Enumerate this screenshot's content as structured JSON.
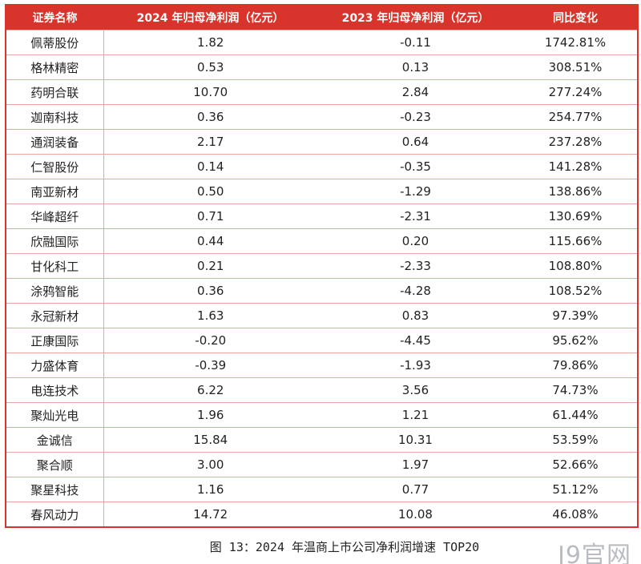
{
  "table": {
    "header": [
      "证券名称",
      "2024 年归母净利润（亿元）",
      "2023 年归母净利润（亿元）",
      "同比变化"
    ],
    "rows": [
      [
        "佩蒂股份",
        "1.82",
        "-0.11",
        "1742.81%"
      ],
      [
        "格林精密",
        "0.53",
        "0.13",
        "308.51%"
      ],
      [
        "药明合联",
        "10.70",
        "2.84",
        "277.24%"
      ],
      [
        "迦南科技",
        "0.36",
        "-0.23",
        "254.77%"
      ],
      [
        "通润装备",
        "2.17",
        "0.64",
        "237.28%"
      ],
      [
        "仁智股份",
        "0.14",
        "-0.35",
        "141.28%"
      ],
      [
        "南亚新材",
        "0.50",
        "-1.29",
        "138.86%"
      ],
      [
        "华峰超纤",
        "0.71",
        "-2.31",
        "130.69%"
      ],
      [
        "欣融国际",
        "0.44",
        "0.20",
        "115.66%"
      ],
      [
        "甘化科工",
        "0.21",
        "-2.33",
        "108.80%"
      ],
      [
        "涂鸦智能",
        "0.36",
        "-4.28",
        "108.52%"
      ],
      [
        "永冠新材",
        "1.63",
        "0.83",
        "97.39%"
      ],
      [
        "正康国际",
        "-0.20",
        "-4.45",
        "95.62%"
      ],
      [
        "力盛体育",
        "-0.39",
        "-1.93",
        "79.86%"
      ],
      [
        "电连技术",
        "6.22",
        "3.56",
        "74.73%"
      ],
      [
        "聚灿光电",
        "1.96",
        "1.21",
        "61.44%"
      ],
      [
        "金诚信",
        "15.84",
        "10.31",
        "53.59%"
      ],
      [
        "聚合顺",
        "3.00",
        "1.97",
        "52.66%"
      ],
      [
        "聚星科技",
        "1.16",
        "0.77",
        "51.12%"
      ],
      [
        "春风动力",
        "14.72",
        "10.08",
        "46.08%"
      ]
    ]
  },
  "caption": "图 13：2024 年温商上市公司净利润增速 TOP20",
  "watermark": "J9官网"
}
